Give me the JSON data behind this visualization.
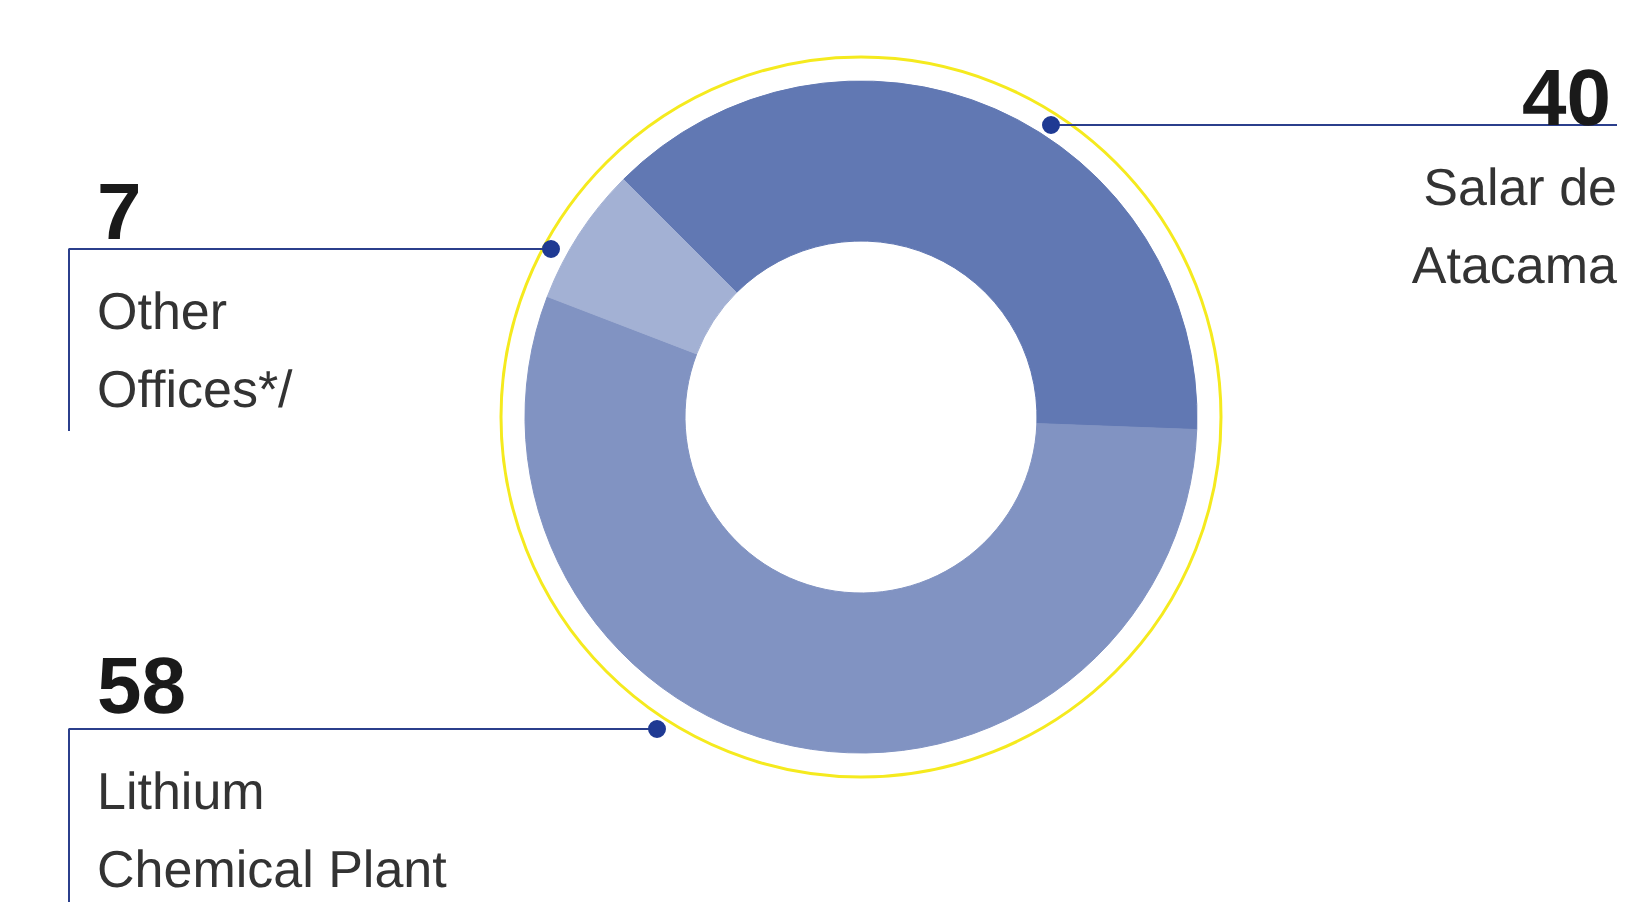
{
  "chart_data": {
    "type": "donut",
    "categories": [
      "Salar de\nAtacama",
      "Lithium\nChemical Plant",
      "Other\nOffices*/"
    ],
    "values": [
      40,
      58,
      7
    ],
    "colors": [
      "#6178b3",
      "#8193c2",
      "#a3b1d4"
    ],
    "data_labels": true
  }
}
